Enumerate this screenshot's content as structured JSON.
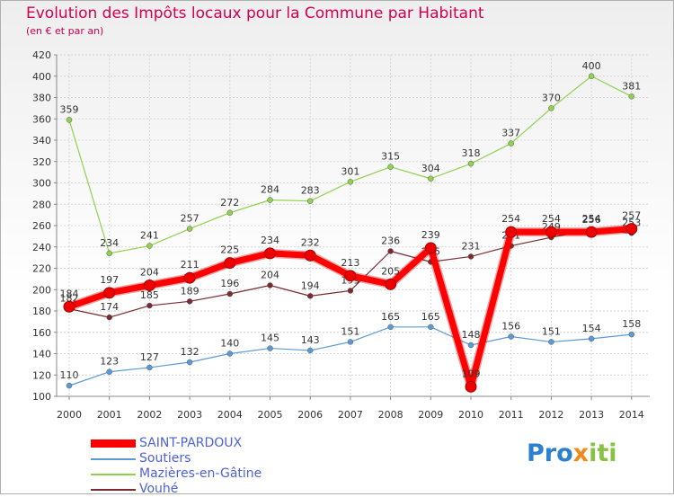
{
  "title": "Evolution des Impôts locaux pour la Commune par Habitant",
  "subtitle": "(en € et par an)",
  "logo": {
    "text": "Proxiti",
    "parts": [
      "Pro",
      "x",
      "iti"
    ]
  },
  "chart_data": {
    "type": "line",
    "title": "Evolution des Impôts locaux pour la Commune par Habitant",
    "subtitle": "(en € et par an)",
    "xlabel": "",
    "ylabel": "",
    "x": [
      "2000",
      "2001",
      "2002",
      "2003",
      "2004",
      "2005",
      "2006",
      "2007",
      "2008",
      "2009",
      "2010",
      "2011",
      "2012",
      "2013",
      "2014"
    ],
    "ylim": [
      100,
      420
    ],
    "yticks": [
      100,
      120,
      140,
      160,
      180,
      200,
      220,
      240,
      260,
      280,
      300,
      320,
      340,
      360,
      380,
      400,
      420
    ],
    "grid": true,
    "legend_position": "bottom-left",
    "series": [
      {
        "name": "SAINT-PARDOUX",
        "color": "#ff0000",
        "emphasis": true,
        "values": [
          184,
          197,
          204,
          211,
          225,
          234,
          232,
          213,
          205,
          239,
          109,
          254,
          254,
          254,
          257
        ]
      },
      {
        "name": "Soutiers",
        "color": "#5b9bd5",
        "emphasis": false,
        "values": [
          110,
          123,
          127,
          132,
          140,
          145,
          143,
          151,
          165,
          165,
          148,
          156,
          151,
          154,
          158
        ]
      },
      {
        "name": "Mazières-en-Gâtine",
        "color": "#92d050",
        "emphasis": false,
        "values": [
          359,
          234,
          241,
          257,
          272,
          284,
          283,
          301,
          315,
          304,
          318,
          337,
          370,
          400,
          381
        ]
      },
      {
        "name": "Vouhé",
        "color": "#7b2b30",
        "emphasis": false,
        "values": [
          182,
          174,
          185,
          189,
          196,
          204,
          194,
          199,
          236,
          226,
          231,
          241,
          249,
          256,
          253
        ]
      }
    ]
  }
}
